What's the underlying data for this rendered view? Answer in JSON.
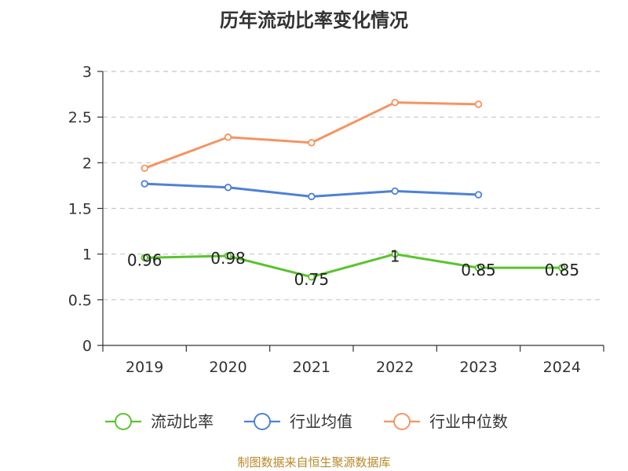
{
  "chart_data": {
    "type": "line",
    "title": "历年流动比率变化情况",
    "categories": [
      "2019",
      "2020",
      "2021",
      "2022",
      "2023",
      "2024"
    ],
    "ylim": [
      0,
      3
    ],
    "yticks": [
      "0",
      "0.5",
      "1",
      "1.5",
      "2",
      "2.5",
      "3"
    ],
    "series": [
      {
        "name": "流动比率",
        "color": "#5ac42e",
        "values": [
          0.96,
          0.98,
          0.75,
          1.0,
          0.85,
          0.85
        ],
        "labels": [
          "0.96",
          "0.98",
          "0.75",
          "1",
          "0.85",
          "0.85"
        ]
      },
      {
        "name": "行业均值",
        "color": "#4f80d8",
        "values": [
          1.77,
          1.73,
          1.63,
          1.69,
          1.65,
          null
        ]
      },
      {
        "name": "行业中位数",
        "color": "#f59462",
        "values": [
          1.94,
          2.28,
          2.22,
          2.66,
          2.64,
          null
        ]
      }
    ],
    "grid": true,
    "legend": "bottom"
  },
  "source": "制图数据来自恒生聚源数据库"
}
